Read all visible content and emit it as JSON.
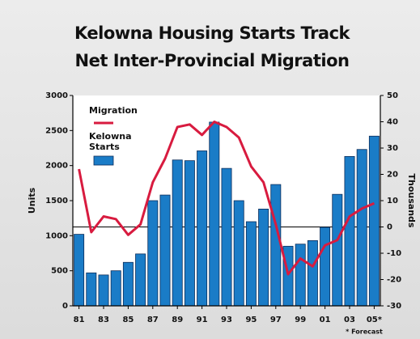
{
  "chart_data": {
    "type": "bar",
    "title": [
      "Kelowna Housing Starts Track",
      "Net Inter-Provincial Migration"
    ],
    "ylabel": "Units",
    "y2label": "Thousands",
    "footnote": "* Forecast",
    "categories": [
      "81",
      null,
      "83",
      null,
      "85",
      null,
      "87",
      null,
      "89",
      null,
      "91",
      null,
      "93",
      null,
      "95",
      null,
      "97",
      null,
      "99",
      null,
      "01",
      null,
      "03",
      null,
      "05*"
    ],
    "series": [
      {
        "name": "Migration",
        "type": "line",
        "axis": "y2",
        "color": "#d81b3f",
        "values": [
          22,
          -2,
          4,
          3,
          -3,
          1,
          17,
          26,
          38,
          39,
          35,
          40,
          38,
          34,
          23,
          17,
          1,
          -18,
          -12,
          -15,
          -7,
          -5,
          4,
          7,
          9
        ]
      },
      {
        "name": "Kelowna Starts",
        "type": "bar",
        "color": "#1a7cc7",
        "values": [
          1020,
          470,
          440,
          500,
          620,
          740,
          1500,
          1580,
          2080,
          2070,
          2210,
          2620,
          1960,
          1500,
          1200,
          1380,
          1730,
          850,
          880,
          930,
          1120,
          1590,
          2130,
          2230,
          2420
        ]
      }
    ],
    "ylim": [
      0,
      3000
    ],
    "yticks": [
      0,
      500,
      1000,
      1500,
      2000,
      2500,
      3000
    ],
    "y2lim": [
      -30,
      50
    ],
    "y2ticks": [
      -30,
      -20,
      -10,
      0,
      10,
      20,
      30,
      40,
      50
    ]
  }
}
